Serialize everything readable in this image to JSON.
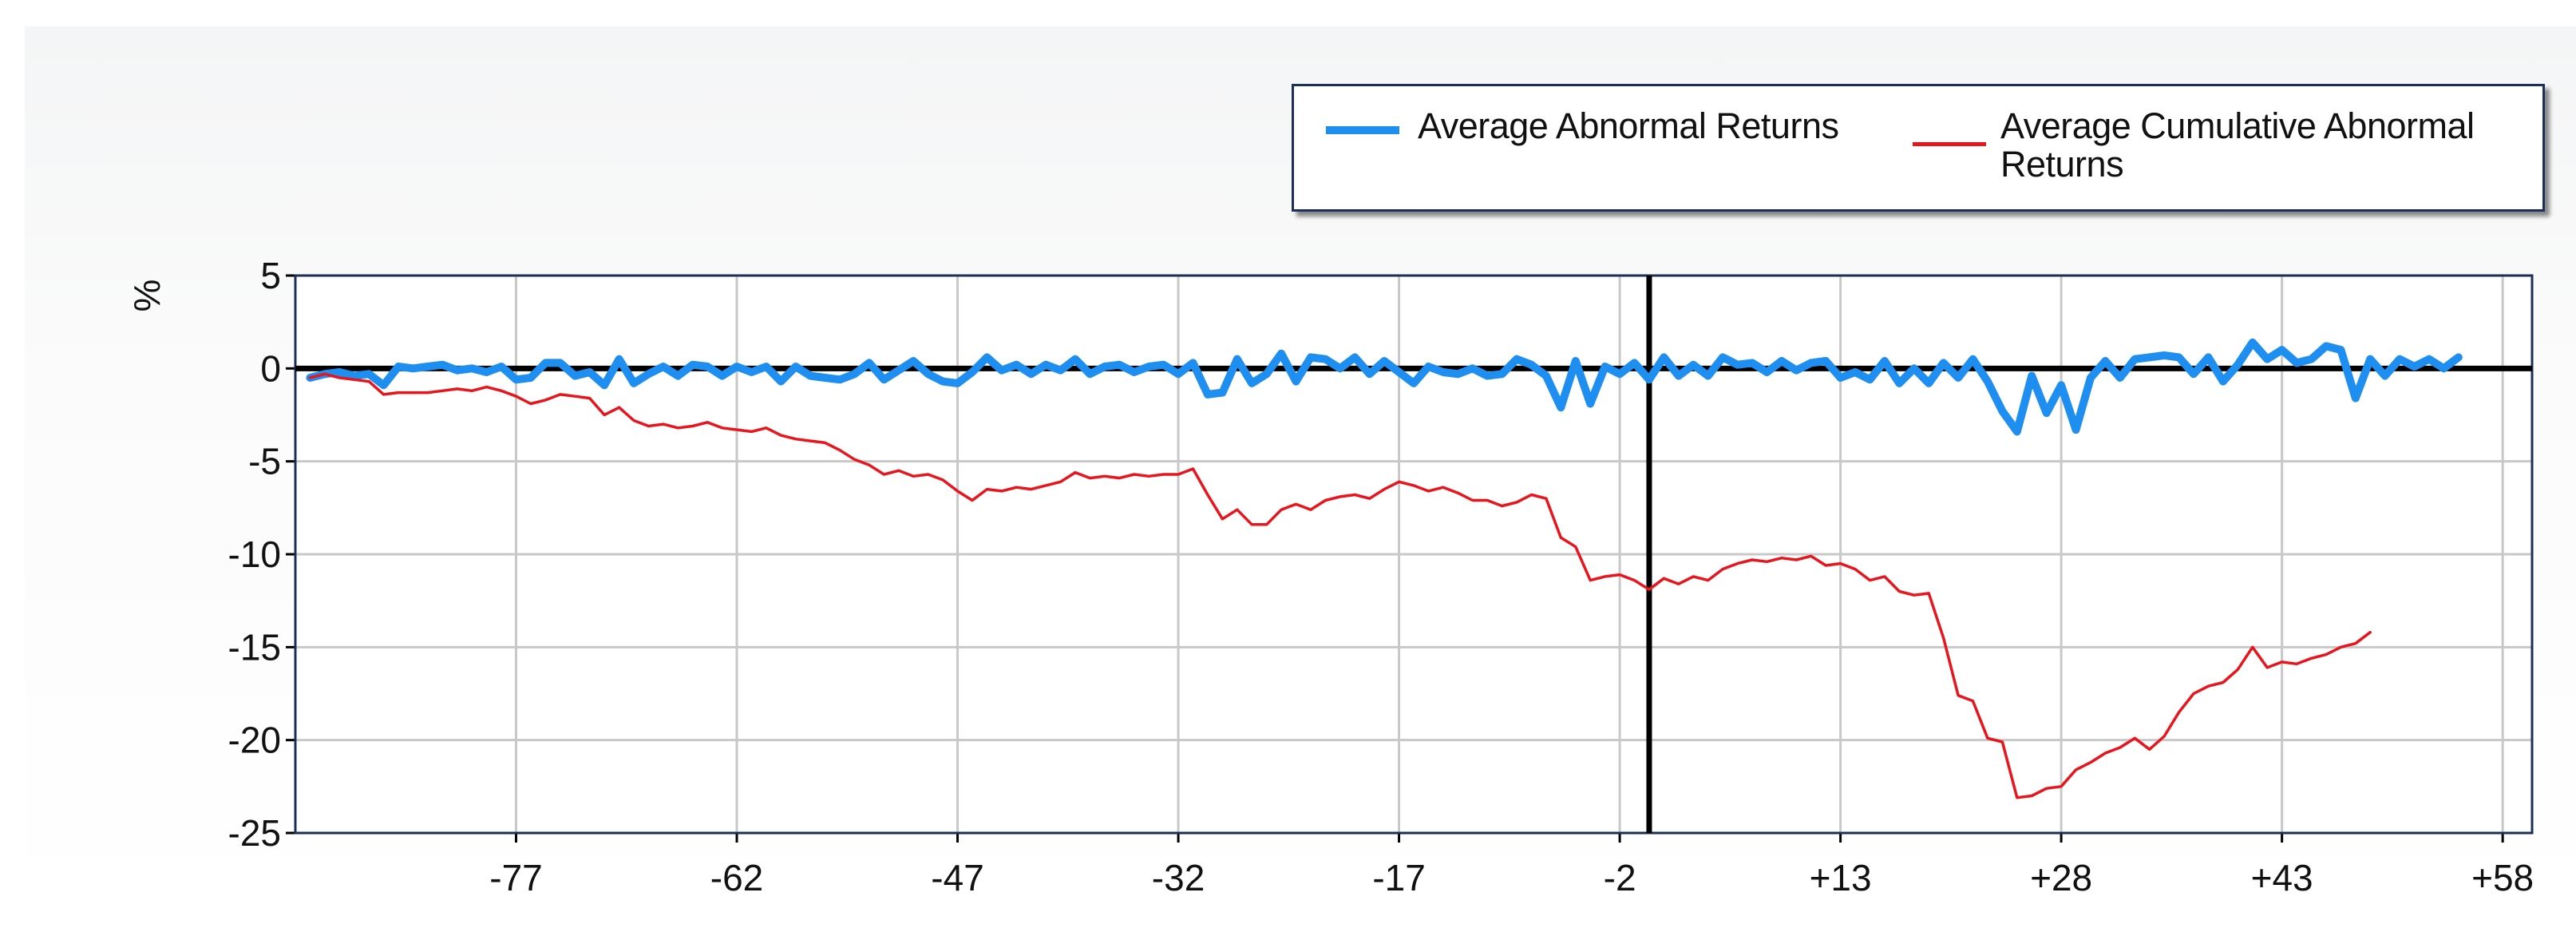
{
  "chart_data": {
    "type": "line",
    "ylabel": "%",
    "ylim": [
      -25,
      5
    ],
    "y_ticks": [
      "5",
      "0",
      "-5",
      "-10",
      "-15",
      "-20",
      "-25"
    ],
    "y_tick_values": [
      5,
      0,
      -5,
      -10,
      -15,
      -20,
      -25
    ],
    "xlim": [
      -92,
      60
    ],
    "x_ticks": [
      "-77",
      "-62",
      "-47",
      "-32",
      "-17",
      "-2",
      "+13",
      "+28",
      "+43",
      "+58"
    ],
    "x_tick_values": [
      -77,
      -62,
      -47,
      -32,
      -17,
      -2,
      13,
      28,
      43,
      58
    ],
    "event_line_x": 0,
    "grid": true,
    "legend_position": "top-right",
    "series": [
      {
        "name": "Average Abnormal Returns",
        "color": "#1e8ef0",
        "x_start": -91,
        "values": [
          -0.5,
          -0.3,
          -0.2,
          -0.4,
          -0.3,
          -0.9,
          0.1,
          0.0,
          0.1,
          0.2,
          -0.1,
          0.0,
          -0.2,
          0.1,
          -0.6,
          -0.5,
          0.3,
          0.3,
          -0.4,
          -0.2,
          -0.9,
          0.5,
          -0.8,
          -0.3,
          0.1,
          -0.4,
          0.2,
          0.1,
          -0.4,
          0.1,
          -0.2,
          0.1,
          -0.7,
          0.1,
          -0.4,
          -0.5,
          -0.6,
          -0.3,
          0.3,
          -0.6,
          -0.1,
          0.4,
          -0.3,
          -0.7,
          -0.8,
          -0.2,
          0.6,
          -0.1,
          0.2,
          -0.3,
          0.2,
          -0.1,
          0.5,
          -0.3,
          0.1,
          0.2,
          -0.2,
          0.1,
          0.2,
          -0.3,
          0.3,
          -1.4,
          -1.3,
          0.5,
          -0.8,
          -0.3,
          0.8,
          -0.7,
          0.6,
          0.5,
          0.0,
          0.6,
          -0.3,
          0.4,
          -0.2,
          -0.8,
          0.1,
          -0.2,
          -0.3,
          0.0,
          -0.4,
          -0.3,
          0.5,
          0.2,
          -0.4,
          -2.1,
          0.4,
          -1.9,
          0.1,
          -0.3,
          0.3,
          -0.6,
          0.6,
          -0.4,
          0.2,
          -0.4,
          0.6,
          0.2,
          0.3,
          -0.2,
          0.4,
          -0.1,
          0.3,
          0.4,
          -0.5,
          -0.2,
          -0.6,
          0.4,
          -0.8,
          0.0,
          -0.8,
          0.3,
          -0.5,
          0.5,
          -0.7,
          -2.3,
          -3.4,
          -0.4,
          -2.4,
          -0.9,
          -3.3,
          -0.5,
          0.4,
          -0.5,
          0.5,
          0.6,
          0.7,
          0.6,
          -0.3,
          0.6,
          -0.7,
          0.2,
          1.4,
          0.5,
          1.0,
          0.3,
          0.5,
          1.2,
          1.0,
          -1.6,
          0.5,
          -0.4,
          0.5,
          0.1,
          0.5,
          0.0,
          0.6
        ]
      },
      {
        "name": "Average Cumulative Abnormal Returns",
        "color": "#e8151c",
        "x_start": -91,
        "values": [
          -0.5,
          -0.3,
          -0.5,
          -0.6,
          -0.7,
          -1.4,
          -1.3,
          -1.3,
          -1.3,
          -1.2,
          -1.1,
          -1.2,
          -1.0,
          -1.2,
          -1.5,
          -1.9,
          -1.7,
          -1.4,
          -1.5,
          -1.6,
          -2.5,
          -2.1,
          -2.8,
          -3.1,
          -3.0,
          -3.2,
          -3.1,
          -2.9,
          -3.2,
          -3.3,
          -3.4,
          -3.2,
          -3.6,
          -3.8,
          -3.9,
          -4.0,
          -4.4,
          -4.9,
          -5.2,
          -5.7,
          -5.5,
          -5.8,
          -5.7,
          -6.0,
          -6.6,
          -7.1,
          -6.5,
          -6.6,
          -6.4,
          -6.5,
          -6.3,
          -6.1,
          -5.6,
          -5.9,
          -5.8,
          -5.9,
          -5.7,
          -5.8,
          -5.7,
          -5.7,
          -5.4,
          -6.8,
          -8.1,
          -7.6,
          -8.4,
          -8.4,
          -7.6,
          -7.3,
          -7.6,
          -7.1,
          -6.9,
          -6.8,
          -7.0,
          -6.5,
          -6.1,
          -6.3,
          -6.6,
          -6.4,
          -6.7,
          -7.1,
          -7.1,
          -7.4,
          -7.2,
          -6.8,
          -7.0,
          -9.1,
          -9.6,
          -11.4,
          -11.2,
          -11.1,
          -11.4,
          -11.9,
          -11.3,
          -11.6,
          -11.2,
          -11.4,
          -10.8,
          -10.5,
          -10.3,
          -10.4,
          -10.2,
          -10.3,
          -10.1,
          -10.6,
          -10.5,
          -10.8,
          -11.4,
          -11.2,
          -12.0,
          -12.2,
          -12.1,
          -14.5,
          -17.6,
          -17.9,
          -19.9,
          -20.1,
          -23.1,
          -23.0,
          -22.6,
          -22.5,
          -21.6,
          -21.2,
          -20.7,
          -20.4,
          -19.9,
          -20.5,
          -19.8,
          -18.5,
          -17.5,
          -17.1,
          -16.9,
          -16.2,
          -15.0,
          -16.1,
          -15.8,
          -15.9,
          -15.6,
          -15.4,
          -15.0,
          -14.8,
          -14.2
        ]
      }
    ]
  }
}
